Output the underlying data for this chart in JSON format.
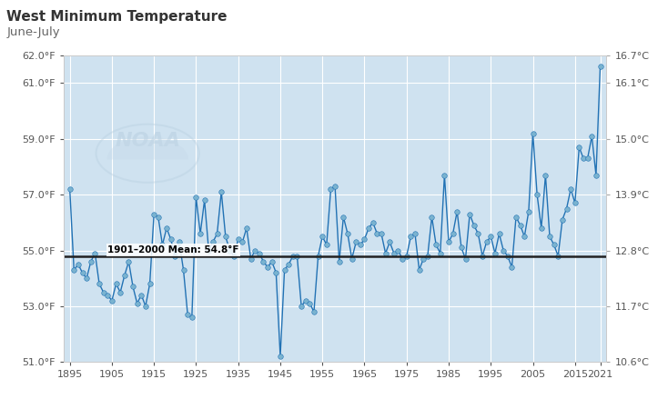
{
  "title": "West Minimum Temperature",
  "subtitle": "June-July",
  "mean_label": "1901–2000 Mean: 54.8°F",
  "mean_value": 54.8,
  "xlim": [
    1893.5,
    2022.5
  ],
  "ylim_f": [
    51.0,
    62.0
  ],
  "yticks_f": [
    51.0,
    53.0,
    55.0,
    57.0,
    59.0,
    61.0,
    62.0
  ],
  "ytick_labels_f": [
    "51.0°F",
    "53.0°F",
    "55.0°F",
    "57.0°F",
    "59.0°F",
    "61.0°F",
    "62.0°F"
  ],
  "ytick_labels_c": [
    "10.6°C",
    "11.7°C",
    "12.8°C",
    "13.9°C",
    "15.0°C",
    "16.1°C",
    "16.7°C"
  ],
  "xticks": [
    1895,
    1905,
    1915,
    1925,
    1935,
    1945,
    1955,
    1965,
    1975,
    1985,
    1995,
    2005,
    2015,
    2021
  ],
  "background_color": "#ffffff",
  "plot_bg_color": "#cfe2f0",
  "fill_color": "#cfe2f0",
  "line_color": "#2272b4",
  "dot_color": "#7ab3d0",
  "mean_line_color": "#222222",
  "title_color": "#333333",
  "subtitle_color": "#666666",
  "years": [
    1895,
    1896,
    1897,
    1898,
    1899,
    1900,
    1901,
    1902,
    1903,
    1904,
    1905,
    1906,
    1907,
    1908,
    1909,
    1910,
    1911,
    1912,
    1913,
    1914,
    1915,
    1916,
    1917,
    1918,
    1919,
    1920,
    1921,
    1922,
    1923,
    1924,
    1925,
    1926,
    1927,
    1928,
    1929,
    1930,
    1931,
    1932,
    1933,
    1934,
    1935,
    1936,
    1937,
    1938,
    1939,
    1940,
    1941,
    1942,
    1943,
    1944,
    1945,
    1946,
    1947,
    1948,
    1949,
    1950,
    1951,
    1952,
    1953,
    1954,
    1955,
    1956,
    1957,
    1958,
    1959,
    1960,
    1961,
    1962,
    1963,
    1964,
    1965,
    1966,
    1967,
    1968,
    1969,
    1970,
    1971,
    1972,
    1973,
    1974,
    1975,
    1976,
    1977,
    1978,
    1979,
    1980,
    1981,
    1982,
    1983,
    1984,
    1985,
    1986,
    1987,
    1988,
    1989,
    1990,
    1991,
    1992,
    1993,
    1994,
    1995,
    1996,
    1997,
    1998,
    1999,
    2000,
    2001,
    2002,
    2003,
    2004,
    2005,
    2006,
    2007,
    2008,
    2009,
    2010,
    2011,
    2012,
    2013,
    2014,
    2015,
    2016,
    2017,
    2018,
    2019,
    2020,
    2021
  ],
  "values": [
    57.2,
    54.3,
    54.5,
    54.2,
    54.0,
    54.6,
    54.9,
    53.8,
    53.5,
    53.4,
    53.2,
    53.8,
    53.5,
    54.1,
    54.6,
    53.7,
    53.1,
    53.4,
    53.0,
    53.8,
    56.3,
    56.2,
    55.2,
    55.8,
    55.4,
    54.8,
    55.3,
    54.3,
    52.7,
    52.6,
    56.9,
    55.6,
    56.8,
    55.0,
    55.3,
    55.6,
    57.1,
    55.5,
    55.0,
    54.8,
    55.4,
    55.3,
    55.8,
    54.7,
    55.0,
    54.9,
    54.6,
    54.4,
    54.6,
    54.2,
    51.2,
    54.3,
    54.5,
    54.8,
    54.8,
    53.0,
    53.2,
    53.1,
    52.8,
    54.8,
    55.5,
    55.2,
    57.2,
    57.3,
    54.6,
    56.2,
    55.6,
    54.7,
    55.3,
    55.2,
    55.4,
    55.8,
    56.0,
    55.6,
    55.6,
    54.9,
    55.3,
    54.9,
    55.0,
    54.7,
    54.8,
    55.5,
    55.6,
    54.3,
    54.7,
    54.8,
    56.2,
    55.2,
    54.9,
    57.7,
    55.3,
    55.6,
    56.4,
    55.1,
    54.7,
    56.3,
    55.9,
    55.6,
    54.8,
    55.3,
    55.5,
    54.9,
    55.6,
    55.0,
    54.8,
    54.4,
    56.2,
    55.9,
    55.5,
    56.4,
    59.2,
    57.0,
    55.8,
    57.7,
    55.5,
    55.2,
    54.8,
    56.1,
    56.5,
    57.2,
    56.7,
    58.7,
    58.3,
    58.3,
    59.1,
    57.7,
    61.6
  ]
}
